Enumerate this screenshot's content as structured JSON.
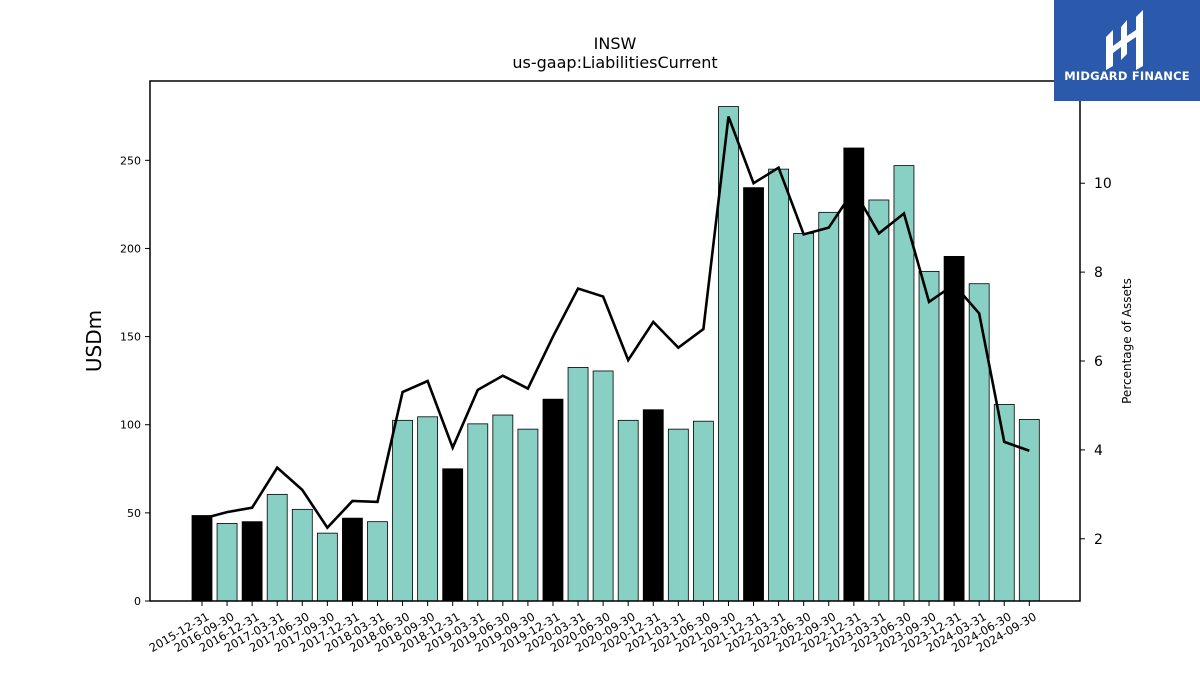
{
  "brand": {
    "name": "MIDGARD FINANCE",
    "color": "#2b5aad",
    "logo_icon": "midgard-logo-icon"
  },
  "chart_data": {
    "type": "bar",
    "title": "INSW",
    "subtitle": "us-gaap:LiabilitiesCurrent",
    "ylabel": "USDm",
    "y2label": "Percentage of Assets",
    "ylim": [
      0,
      295
    ],
    "y2lim": [
      0.6,
      12.3
    ],
    "yticks": [
      0,
      50,
      100,
      150,
      200,
      250
    ],
    "y2ticks": [
      2,
      4,
      6,
      8,
      10
    ],
    "grid": false,
    "colors": {
      "annual": "#000000",
      "quarterly": "#88d0c4",
      "line": "#000000"
    },
    "categories": [
      "2015-12-31",
      "2016-09-30",
      "2016-12-31",
      "2017-03-31",
      "2017-06-30",
      "2017-09-30",
      "2017-12-31",
      "2018-03-31",
      "2018-06-30",
      "2018-09-30",
      "2018-12-31",
      "2019-03-31",
      "2019-06-30",
      "2019-09-30",
      "2019-12-31",
      "2020-03-31",
      "2020-06-30",
      "2020-09-30",
      "2020-12-31",
      "2021-03-31",
      "2021-06-30",
      "2021-09-30",
      "2021-12-31",
      "2022-03-31",
      "2022-06-30",
      "2022-09-30",
      "2022-12-31",
      "2023-03-31",
      "2023-06-30",
      "2023-09-30",
      "2023-12-31",
      "2024-03-31",
      "2024-06-30",
      "2024-09-30"
    ],
    "series": [
      {
        "type": "bar",
        "values": [
          48.5,
          44,
          45,
          60.5,
          52,
          38.5,
          47,
          45,
          102.5,
          104.5,
          75,
          100.5,
          105.5,
          97.5,
          114.5,
          132.5,
          130.5,
          102.5,
          108.5,
          97.5,
          102,
          280.5,
          234.5,
          245,
          208.5,
          220.5,
          257,
          227.5,
          247,
          187,
          195.5,
          180,
          111.5,
          103
        ],
        "annual": [
          true,
          false,
          true,
          false,
          false,
          false,
          true,
          false,
          false,
          false,
          true,
          false,
          false,
          false,
          true,
          false,
          false,
          false,
          true,
          false,
          false,
          false,
          true,
          false,
          false,
          false,
          true,
          false,
          false,
          false,
          true,
          false,
          false,
          false
        ]
      },
      {
        "type": "line",
        "axis": "right",
        "values": [
          2.45,
          2.6,
          2.7,
          3.6,
          3.1,
          2.25,
          2.85,
          2.83,
          5.3,
          5.55,
          4.05,
          5.35,
          5.67,
          5.38,
          6.55,
          7.63,
          7.45,
          6.02,
          6.88,
          6.3,
          6.72,
          11.5,
          10.0,
          10.35,
          8.85,
          9.0,
          9.85,
          8.87,
          9.32,
          7.33,
          7.72,
          7.07,
          4.18,
          3.98
        ]
      }
    ]
  }
}
